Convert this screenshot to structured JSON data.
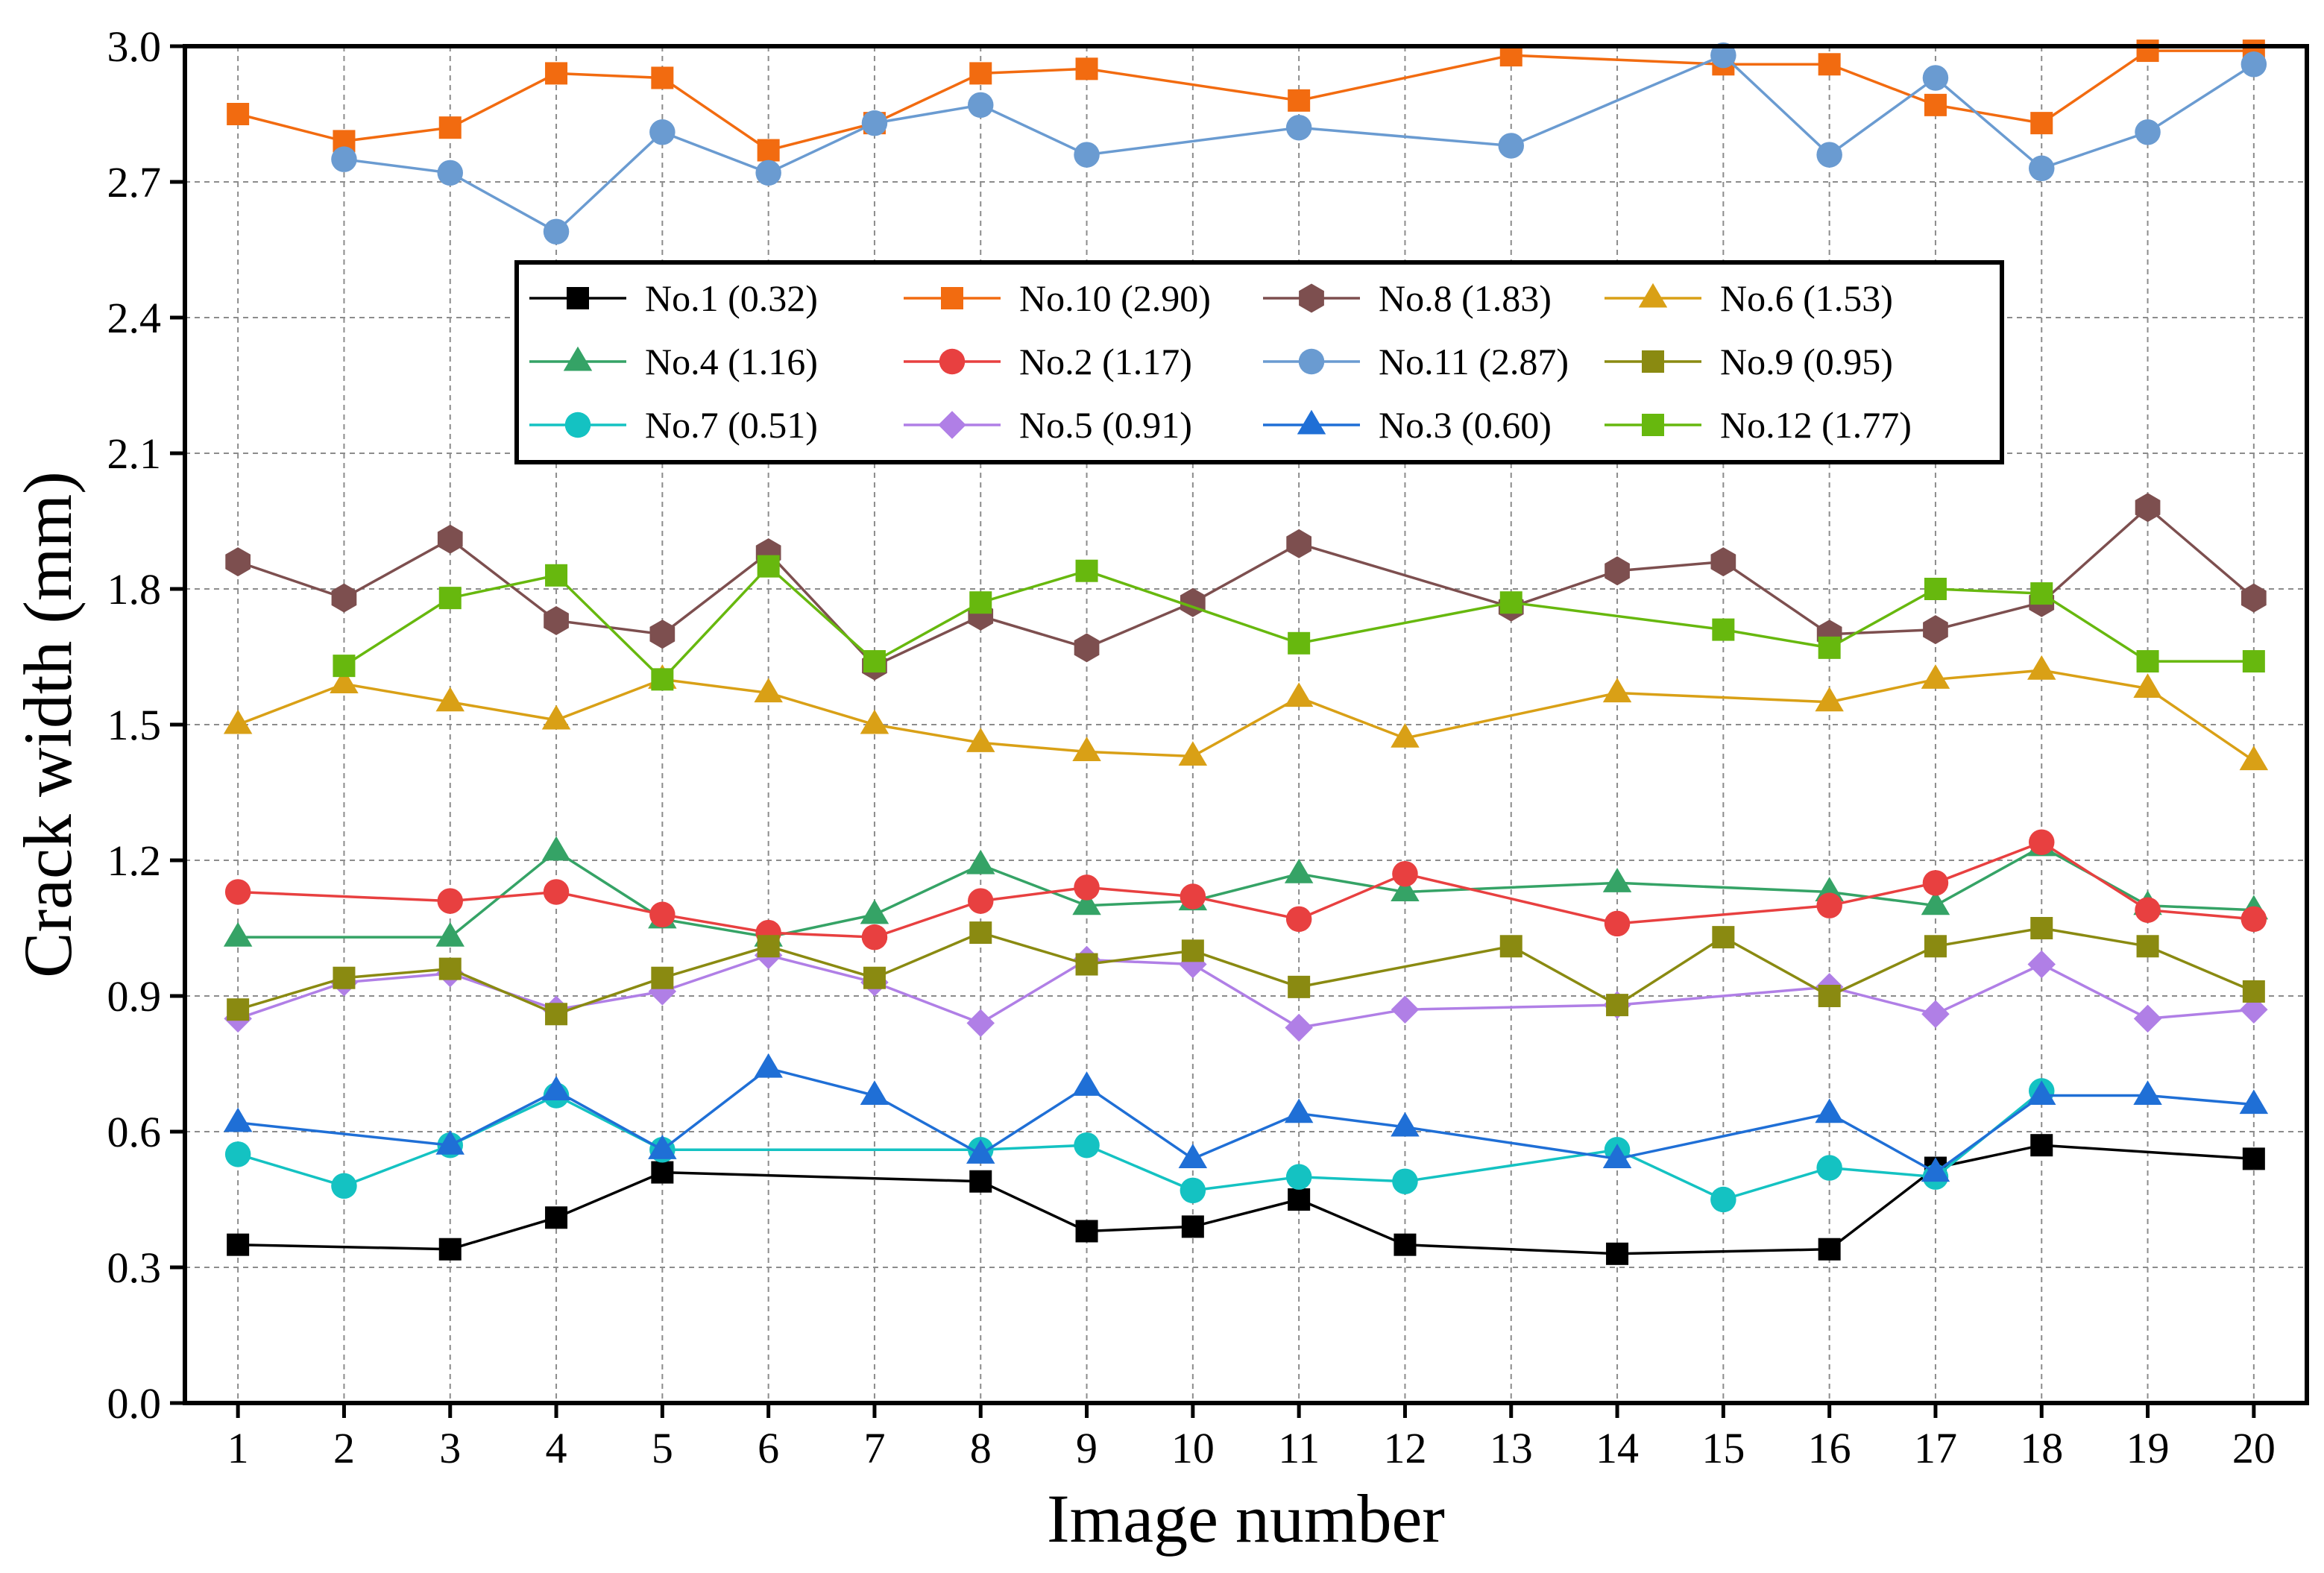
{
  "chart_data": {
    "type": "line",
    "xlabel": "Image number",
    "ylabel": "Crack width (mm)",
    "x": [
      1,
      2,
      3,
      4,
      5,
      6,
      7,
      8,
      9,
      10,
      11,
      12,
      13,
      14,
      15,
      16,
      17,
      18,
      19,
      20
    ],
    "xlim": [
      0.5,
      20.5
    ],
    "ylim": [
      0.0,
      3.0
    ],
    "yticks": [
      "0.0",
      "0.3",
      "0.6",
      "0.9",
      "1.2",
      "1.5",
      "1.8",
      "2.1",
      "2.4",
      "2.7",
      "3.0"
    ],
    "grid": true,
    "legend_position": "upper-middle",
    "series": [
      {
        "name": "No.1 (0.32)",
        "color": "#000000",
        "marker": "square",
        "points": [
          [
            1,
            0.35
          ],
          [
            3,
            0.34
          ],
          [
            4,
            0.41
          ],
          [
            5,
            0.51
          ],
          [
            8,
            0.49
          ],
          [
            9,
            0.38
          ],
          [
            10,
            0.39
          ],
          [
            11,
            0.45
          ],
          [
            12,
            0.35
          ],
          [
            14,
            0.33
          ],
          [
            16,
            0.34
          ],
          [
            17,
            0.52
          ],
          [
            18,
            0.57
          ],
          [
            20,
            0.54
          ]
        ]
      },
      {
        "name": "No.4 (1.16)",
        "color": "#35A366",
        "marker": "triangle",
        "points": [
          [
            1,
            1.03
          ],
          [
            3,
            1.03
          ],
          [
            4,
            1.22
          ],
          [
            5,
            1.07
          ],
          [
            6,
            1.03
          ],
          [
            7,
            1.08
          ],
          [
            8,
            1.19
          ],
          [
            9,
            1.1
          ],
          [
            10,
            1.11
          ],
          [
            11,
            1.17
          ],
          [
            12,
            1.13
          ],
          [
            14,
            1.15
          ],
          [
            16,
            1.13
          ],
          [
            17,
            1.1
          ],
          [
            18,
            1.23
          ],
          [
            19,
            1.1
          ],
          [
            20,
            1.09
          ]
        ]
      },
      {
        "name": "No.7 (0.51)",
        "color": "#14C2C2",
        "marker": "circle",
        "points": [
          [
            1,
            0.55
          ],
          [
            2,
            0.48
          ],
          [
            3,
            0.57
          ],
          [
            4,
            0.68
          ],
          [
            5,
            0.56
          ],
          [
            8,
            0.56
          ],
          [
            9,
            0.57
          ],
          [
            10,
            0.47
          ],
          [
            11,
            0.5
          ],
          [
            12,
            0.49
          ],
          [
            14,
            0.56
          ],
          [
            15,
            0.45
          ],
          [
            16,
            0.52
          ],
          [
            17,
            0.5
          ],
          [
            18,
            0.69
          ]
        ]
      },
      {
        "name": "No.10 (2.90)",
        "color": "#F26B10",
        "marker": "square",
        "points": [
          [
            1,
            2.85
          ],
          [
            2,
            2.79
          ],
          [
            3,
            2.82
          ],
          [
            4,
            2.94
          ],
          [
            5,
            2.93
          ],
          [
            6,
            2.77
          ],
          [
            7,
            2.83
          ],
          [
            8,
            2.94
          ],
          [
            9,
            2.95
          ],
          [
            11,
            2.88
          ],
          [
            13,
            2.98
          ],
          [
            15,
            2.96
          ],
          [
            16,
            2.96
          ],
          [
            17,
            2.87
          ],
          [
            18,
            2.83
          ],
          [
            19,
            2.99
          ],
          [
            20,
            2.99
          ]
        ]
      },
      {
        "name": "No.2 (1.17)",
        "color": "#E84040",
        "marker": "circle",
        "points": [
          [
            1,
            1.13
          ],
          [
            3,
            1.11
          ],
          [
            4,
            1.13
          ],
          [
            5,
            1.08
          ],
          [
            6,
            1.04
          ],
          [
            7,
            1.03
          ],
          [
            8,
            1.11
          ],
          [
            9,
            1.14
          ],
          [
            10,
            1.12
          ],
          [
            11,
            1.07
          ],
          [
            12,
            1.17
          ],
          [
            14,
            1.06
          ],
          [
            16,
            1.1
          ],
          [
            17,
            1.15
          ],
          [
            18,
            1.24
          ],
          [
            19,
            1.09
          ],
          [
            20,
            1.07
          ]
        ]
      },
      {
        "name": "No.5 (0.91)",
        "color": "#B07FE6",
        "marker": "diamond",
        "points": [
          [
            1,
            0.85
          ],
          [
            2,
            0.93
          ],
          [
            3,
            0.95
          ],
          [
            4,
            0.87
          ],
          [
            5,
            0.91
          ],
          [
            6,
            0.99
          ],
          [
            7,
            0.93
          ],
          [
            8,
            0.84
          ],
          [
            9,
            0.98
          ],
          [
            10,
            0.97
          ],
          [
            11,
            0.83
          ],
          [
            12,
            0.87
          ],
          [
            14,
            0.88
          ],
          [
            16,
            0.92
          ],
          [
            17,
            0.86
          ],
          [
            18,
            0.97
          ],
          [
            19,
            0.85
          ],
          [
            20,
            0.87
          ]
        ]
      },
      {
        "name": "No.8 (1.83)",
        "color": "#7D4F4F",
        "marker": "hexagon",
        "points": [
          [
            1,
            1.86
          ],
          [
            2,
            1.78
          ],
          [
            3,
            1.91
          ],
          [
            4,
            1.73
          ],
          [
            5,
            1.7
          ],
          [
            6,
            1.88
          ],
          [
            7,
            1.63
          ],
          [
            8,
            1.74
          ],
          [
            9,
            1.67
          ],
          [
            10,
            1.77
          ],
          [
            11,
            1.9
          ],
          [
            13,
            1.76
          ],
          [
            14,
            1.84
          ],
          [
            15,
            1.86
          ],
          [
            16,
            1.7
          ],
          [
            17,
            1.71
          ],
          [
            18,
            1.77
          ],
          [
            19,
            1.98
          ],
          [
            20,
            1.78
          ]
        ]
      },
      {
        "name": "No.11 (2.87)",
        "color": "#6A9BD1",
        "marker": "circle",
        "points": [
          [
            2,
            2.75
          ],
          [
            3,
            2.72
          ],
          [
            4,
            2.59
          ],
          [
            5,
            2.81
          ],
          [
            6,
            2.72
          ],
          [
            7,
            2.83
          ],
          [
            8,
            2.87
          ],
          [
            9,
            2.76
          ],
          [
            11,
            2.82
          ],
          [
            13,
            2.78
          ],
          [
            15,
            2.98
          ],
          [
            16,
            2.76
          ],
          [
            17,
            2.93
          ],
          [
            18,
            2.73
          ],
          [
            19,
            2.81
          ],
          [
            20,
            2.96
          ]
        ]
      },
      {
        "name": "No.3 (0.60)",
        "color": "#1F6FD6",
        "marker": "triangle",
        "points": [
          [
            1,
            0.62
          ],
          [
            3,
            0.57
          ],
          [
            4,
            0.69
          ],
          [
            5,
            0.56
          ],
          [
            6,
            0.74
          ],
          [
            7,
            0.68
          ],
          [
            8,
            0.55
          ],
          [
            9,
            0.7
          ],
          [
            10,
            0.54
          ],
          [
            11,
            0.64
          ],
          [
            12,
            0.61
          ],
          [
            14,
            0.54
          ],
          [
            16,
            0.64
          ],
          [
            17,
            0.51
          ],
          [
            18,
            0.68
          ],
          [
            19,
            0.68
          ],
          [
            20,
            0.66
          ]
        ]
      },
      {
        "name": "No.6 (1.53)",
        "color": "#D9A016",
        "marker": "triangle",
        "points": [
          [
            1,
            1.5
          ],
          [
            2,
            1.59
          ],
          [
            3,
            1.55
          ],
          [
            4,
            1.51
          ],
          [
            5,
            1.6
          ],
          [
            6,
            1.57
          ],
          [
            7,
            1.5
          ],
          [
            8,
            1.46
          ],
          [
            9,
            1.44
          ],
          [
            10,
            1.43
          ],
          [
            11,
            1.56
          ],
          [
            12,
            1.47
          ],
          [
            14,
            1.57
          ],
          [
            16,
            1.55
          ],
          [
            17,
            1.6
          ],
          [
            18,
            1.62
          ],
          [
            19,
            1.58
          ],
          [
            20,
            1.42
          ]
        ]
      },
      {
        "name": "No.9 (0.95)",
        "color": "#8A8A11",
        "marker": "square",
        "points": [
          [
            1,
            0.87
          ],
          [
            2,
            0.94
          ],
          [
            3,
            0.96
          ],
          [
            4,
            0.86
          ],
          [
            5,
            0.94
          ],
          [
            6,
            1.01
          ],
          [
            7,
            0.94
          ],
          [
            8,
            1.04
          ],
          [
            9,
            0.97
          ],
          [
            10,
            1.0
          ],
          [
            11,
            0.92
          ],
          [
            13,
            1.01
          ],
          [
            14,
            0.88
          ],
          [
            15,
            1.03
          ],
          [
            16,
            0.9
          ],
          [
            17,
            1.01
          ],
          [
            18,
            1.05
          ],
          [
            19,
            1.01
          ],
          [
            20,
            0.91
          ]
        ]
      },
      {
        "name": "No.12 (1.77)",
        "color": "#67B80E",
        "marker": "square",
        "points": [
          [
            2,
            1.63
          ],
          [
            3,
            1.78
          ],
          [
            4,
            1.83
          ],
          [
            5,
            1.6
          ],
          [
            6,
            1.85
          ],
          [
            7,
            1.64
          ],
          [
            8,
            1.77
          ],
          [
            9,
            1.84
          ],
          [
            11,
            1.68
          ],
          [
            13,
            1.77
          ],
          [
            15,
            1.71
          ],
          [
            16,
            1.67
          ],
          [
            17,
            1.8
          ],
          [
            18,
            1.79
          ],
          [
            19,
            1.64
          ],
          [
            20,
            1.64
          ]
        ]
      }
    ]
  }
}
